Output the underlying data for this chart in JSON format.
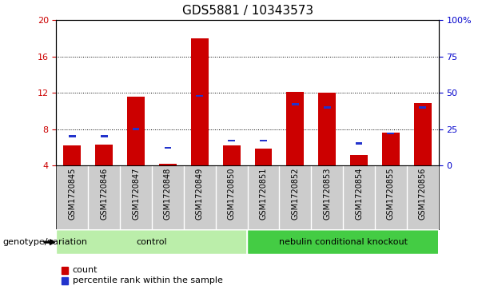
{
  "title": "GDS5881 / 10343573",
  "samples": [
    "GSM1720845",
    "GSM1720846",
    "GSM1720847",
    "GSM1720848",
    "GSM1720849",
    "GSM1720850",
    "GSM1720851",
    "GSM1720852",
    "GSM1720853",
    "GSM1720854",
    "GSM1720855",
    "GSM1720856"
  ],
  "count_values": [
    6.2,
    6.3,
    11.6,
    4.2,
    18.0,
    6.2,
    5.8,
    12.1,
    12.0,
    5.1,
    7.6,
    10.9
  ],
  "percentile_values": [
    20,
    20,
    25,
    12,
    48,
    17,
    17,
    42,
    40,
    15,
    22,
    40
  ],
  "ylim_left": [
    4,
    20
  ],
  "ylim_right": [
    0,
    100
  ],
  "yticks_left": [
    4,
    8,
    12,
    16,
    20
  ],
  "ytick_labels_left": [
    "4",
    "8",
    "12",
    "16",
    "20"
  ],
  "yticks_right": [
    0,
    25,
    50,
    75,
    100
  ],
  "ytick_labels_right": [
    "0",
    "25",
    "50",
    "75",
    "100%"
  ],
  "bar_color": "#cc0000",
  "percentile_color": "#2233cc",
  "groups": [
    {
      "label": "control",
      "start": 0,
      "end": 5,
      "color": "#bbeeaa"
    },
    {
      "label": "nebulin conditional knockout",
      "start": 6,
      "end": 11,
      "color": "#44cc44"
    }
  ],
  "genotype_label": "genotype/variation",
  "legend_count": "count",
  "legend_percentile": "percentile rank within the sample",
  "background_color": "#ffffff",
  "bar_width": 0.55,
  "blue_bar_width": 0.22,
  "title_fontsize": 11,
  "tick_fontsize": 8,
  "sample_fontsize": 7,
  "label_fontsize": 8
}
